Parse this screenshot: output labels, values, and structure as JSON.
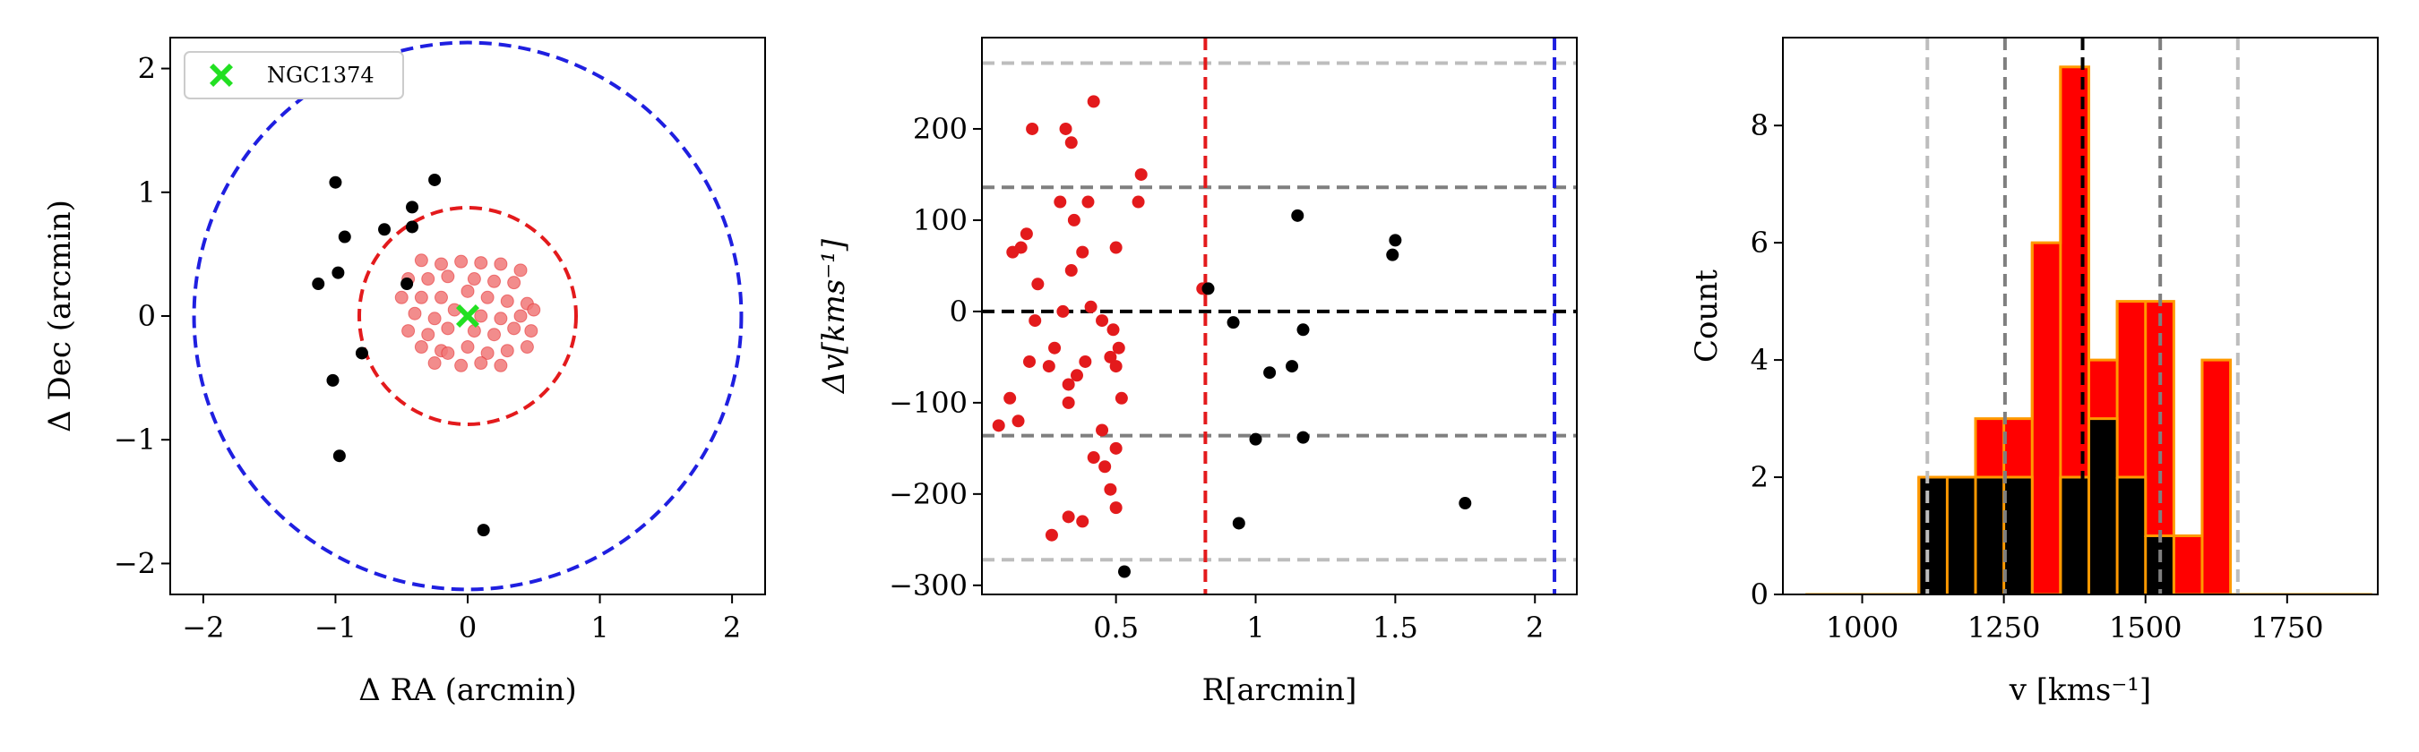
{
  "chart_data": [
    {
      "type": "scatter",
      "xlabel": "Δ RA (arcmin)",
      "ylabel": "Δ Dec (arcmin)",
      "xlim": [
        -2.25,
        2.25
      ],
      "ylim": [
        -2.25,
        2.25
      ],
      "xticks": [
        -2,
        -1,
        0,
        1,
        2
      ],
      "yticks": [
        -2,
        -1,
        0,
        1,
        2
      ],
      "legend": {
        "position": "top-left",
        "entries": [
          "NGC1374"
        ]
      },
      "circles": [
        {
          "radius": 0.82,
          "color": "#e31a1c",
          "style": "dashed"
        },
        {
          "radius": 2.07,
          "color": "#1f1fe0",
          "style": "dashed"
        }
      ],
      "series": [
        {
          "name": "NGC1374",
          "color": "#22e022",
          "marker": "X",
          "points": [
            [
              0.0,
              0.0
            ]
          ]
        },
        {
          "color": "#f07878",
          "marker": "o",
          "points": [
            [
              -0.35,
              0.45
            ],
            [
              -0.2,
              0.42
            ],
            [
              -0.05,
              0.44
            ],
            [
              0.1,
              0.43
            ],
            [
              0.25,
              0.42
            ],
            [
              0.4,
              0.37
            ],
            [
              -0.45,
              0.3
            ],
            [
              -0.3,
              0.3
            ],
            [
              -0.15,
              0.32
            ],
            [
              0.05,
              0.3
            ],
            [
              0.2,
              0.28
            ],
            [
              0.35,
              0.27
            ],
            [
              -0.5,
              0.15
            ],
            [
              -0.35,
              0.15
            ],
            [
              -0.2,
              0.15
            ],
            [
              0.0,
              0.2
            ],
            [
              0.15,
              0.15
            ],
            [
              0.3,
              0.12
            ],
            [
              0.45,
              0.1
            ],
            [
              -0.4,
              0.02
            ],
            [
              -0.25,
              -0.02
            ],
            [
              -0.1,
              0.05
            ],
            [
              0.1,
              0.0
            ],
            [
              0.25,
              -0.02
            ],
            [
              0.4,
              0.0
            ],
            [
              0.5,
              0.05
            ],
            [
              -0.45,
              -0.12
            ],
            [
              -0.3,
              -0.15
            ],
            [
              -0.15,
              -0.1
            ],
            [
              0.05,
              -0.12
            ],
            [
              0.2,
              -0.15
            ],
            [
              0.35,
              -0.1
            ],
            [
              0.48,
              -0.12
            ],
            [
              -0.35,
              -0.25
            ],
            [
              -0.2,
              -0.28
            ],
            [
              0.0,
              -0.25
            ],
            [
              0.15,
              -0.3
            ],
            [
              0.3,
              -0.28
            ],
            [
              0.45,
              -0.25
            ],
            [
              -0.25,
              -0.38
            ],
            [
              -0.05,
              -0.4
            ],
            [
              0.1,
              -0.38
            ],
            [
              0.25,
              -0.4
            ],
            [
              -0.15,
              -0.3
            ]
          ]
        },
        {
          "color": "#000000",
          "marker": "o",
          "points": [
            [
              -1.0,
              1.08
            ],
            [
              0.12,
              -1.73
            ],
            [
              -1.02,
              -0.52
            ],
            [
              -0.97,
              -1.13
            ],
            [
              -0.98,
              0.35
            ],
            [
              -1.13,
              0.26
            ],
            [
              -0.93,
              0.64
            ],
            [
              -0.8,
              -0.3
            ],
            [
              -0.63,
              0.7
            ],
            [
              -0.46,
              0.26
            ],
            [
              -0.42,
              0.72
            ],
            [
              -0.42,
              0.88
            ],
            [
              -0.25,
              1.1
            ]
          ]
        }
      ]
    },
    {
      "type": "scatter",
      "xlabel": "R[arcmin]",
      "ylabel": "Δv[kms⁻¹]",
      "xlim": [
        0.02,
        2.15
      ],
      "ylim": [
        -310,
        300
      ],
      "xticks": [
        0.5,
        1.0,
        1.5,
        2.0
      ],
      "yticks": [
        -300,
        -200,
        -100,
        0,
        100,
        200
      ],
      "hlines": [
        {
          "y": 272,
          "color": "#bdbdbd"
        },
        {
          "y": 136,
          "color": "#7f7f7f"
        },
        {
          "y": 0,
          "color": "#000000"
        },
        {
          "y": -136,
          "color": "#7f7f7f"
        },
        {
          "y": -272,
          "color": "#bdbdbd"
        }
      ],
      "vlines": [
        {
          "x": 0.82,
          "color": "#e31a1c"
        },
        {
          "x": 2.07,
          "color": "#1f1fe0"
        }
      ],
      "series": [
        {
          "color": "#e31a1c",
          "points": [
            [
              0.08,
              -125
            ],
            [
              0.12,
              -95
            ],
            [
              0.13,
              65
            ],
            [
              0.15,
              -120
            ],
            [
              0.16,
              70
            ],
            [
              0.18,
              85
            ],
            [
              0.19,
              -55
            ],
            [
              0.2,
              200
            ],
            [
              0.21,
              -10
            ],
            [
              0.22,
              30
            ],
            [
              0.26,
              -60
            ],
            [
              0.27,
              -245
            ],
            [
              0.28,
              -40
            ],
            [
              0.3,
              120
            ],
            [
              0.31,
              0
            ],
            [
              0.32,
              200
            ],
            [
              0.33,
              -80
            ],
            [
              0.33,
              -100
            ],
            [
              0.33,
              -225
            ],
            [
              0.34,
              45
            ],
            [
              0.34,
              185
            ],
            [
              0.35,
              100
            ],
            [
              0.36,
              -70
            ],
            [
              0.38,
              65
            ],
            [
              0.38,
              -230
            ],
            [
              0.39,
              -55
            ],
            [
              0.4,
              120
            ],
            [
              0.41,
              5
            ],
            [
              0.42,
              -160
            ],
            [
              0.42,
              230
            ],
            [
              0.45,
              -10
            ],
            [
              0.45,
              -130
            ],
            [
              0.46,
              -170
            ],
            [
              0.48,
              -195
            ],
            [
              0.48,
              -50
            ],
            [
              0.49,
              -20
            ],
            [
              0.5,
              70
            ],
            [
              0.5,
              -215
            ],
            [
              0.5,
              -60
            ],
            [
              0.5,
              -150
            ],
            [
              0.51,
              -40
            ],
            [
              0.52,
              -95
            ],
            [
              0.58,
              120
            ],
            [
              0.59,
              150
            ],
            [
              0.81,
              25
            ]
          ]
        },
        {
          "color": "#000000",
          "points": [
            [
              0.83,
              25
            ],
            [
              0.92,
              -12
            ],
            [
              0.94,
              -232
            ],
            [
              1.0,
              -140
            ],
            [
              1.05,
              -67
            ],
            [
              1.13,
              -60
            ],
            [
              1.15,
              105
            ],
            [
              1.17,
              -20
            ],
            [
              1.17,
              -138
            ],
            [
              1.49,
              62
            ],
            [
              1.5,
              78
            ],
            [
              1.75,
              -210
            ],
            [
              0.53,
              -285
            ]
          ]
        }
      ]
    },
    {
      "type": "histogram",
      "xlabel": "v [kms⁻¹]",
      "ylabel": "Count",
      "xlim": [
        860,
        1910
      ],
      "ylim": [
        0,
        9.5
      ],
      "xticks": [
        1000,
        1250,
        1500,
        1750
      ],
      "yticks": [
        0,
        2,
        4,
        6,
        8
      ],
      "bin_edges": [
        900,
        950,
        1000,
        1050,
        1100,
        1150,
        1200,
        1250,
        1300,
        1350,
        1400,
        1450,
        1500,
        1550,
        1600,
        1650,
        1700,
        1750,
        1800,
        1850,
        1900
      ],
      "series": [
        {
          "color": "#ff0000",
          "edgecolor": "#ff9900",
          "counts": [
            0,
            0,
            0,
            0,
            2,
            2,
            3,
            3,
            6,
            9,
            4,
            5,
            5,
            1,
            4,
            0,
            0,
            0,
            0,
            0
          ]
        },
        {
          "color": "#000000",
          "edgecolor": "#ff9900",
          "counts": [
            0,
            0,
            0,
            0,
            2,
            2,
            2,
            2,
            0,
            2,
            3,
            2,
            1,
            0,
            0,
            0,
            0,
            0,
            0,
            0
          ]
        }
      ],
      "vlines": [
        {
          "x": 1115,
          "color": "#bdbdbd"
        },
        {
          "x": 1252,
          "color": "#7f7f7f"
        },
        {
          "x": 1389,
          "color": "#000000"
        },
        {
          "x": 1526,
          "color": "#7f7f7f"
        },
        {
          "x": 1663,
          "color": "#bdbdbd"
        }
      ]
    }
  ]
}
